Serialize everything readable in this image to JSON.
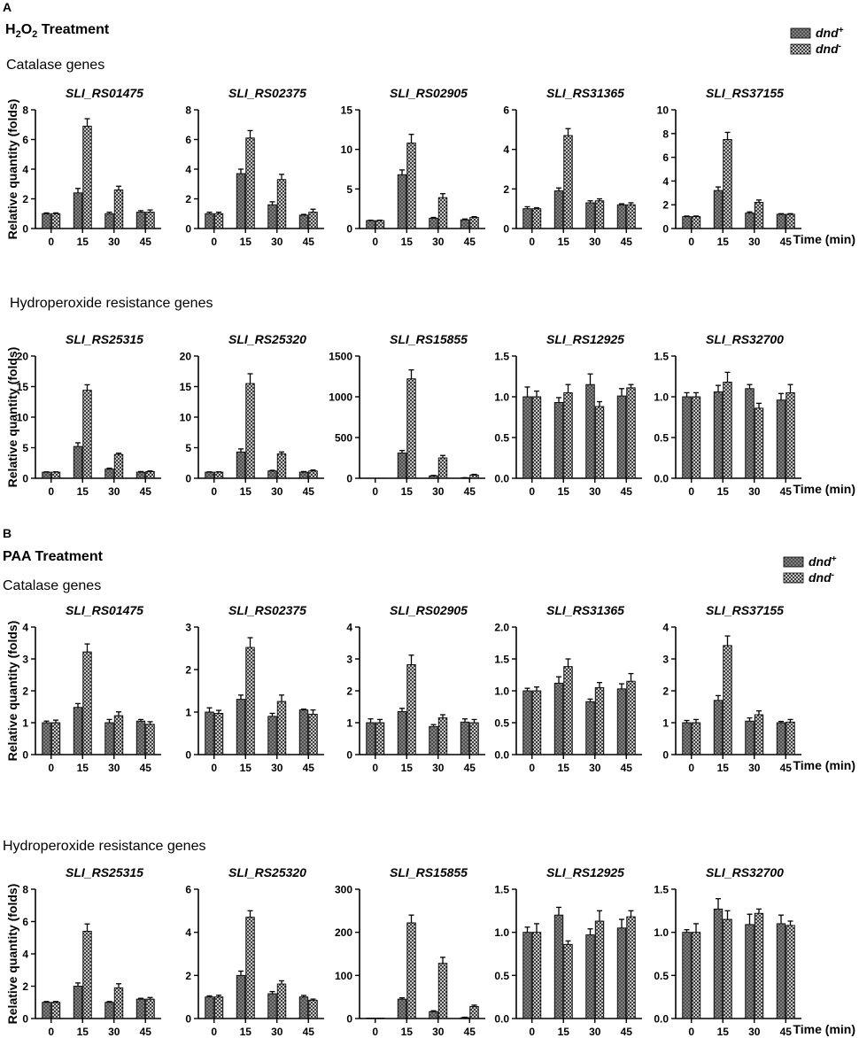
{
  "colors": {
    "ink": "#000000",
    "dnd_plus_fill": "#8a8a8a",
    "dnd_minus_fill": "#e6e6e6"
  },
  "time_label": "Time (min)",
  "ylabel": "Relative quantity (folds)",
  "panels": [
    {
      "letter": "A",
      "treatment": {
        "main": "H",
        "sub1": "2",
        "mid": "O",
        "sub2": "2",
        "rest": " Treatment"
      },
      "legend": [
        {
          "base": "dnd",
          "sup": "+",
          "pattern": "plus"
        },
        {
          "base": "dnd",
          "sup": "-",
          "pattern": "minus"
        }
      ],
      "sections": [
        {
          "title": "Catalase genes"
        },
        {
          "title": "Hydroperoxide resistance genes"
        }
      ]
    },
    {
      "letter": "B",
      "treatment": {
        "main": "PAA Treatment",
        "sub1": "",
        "mid": "",
        "sub2": "",
        "rest": ""
      },
      "legend": [
        {
          "base": "dnd",
          "sup": "+",
          "pattern": "plus"
        },
        {
          "base": "dnd",
          "sup": "-",
          "pattern": "minus"
        }
      ],
      "sections": [
        {
          "title": "Catalase genes"
        },
        {
          "title": "Hydroperoxide resistance genes"
        }
      ]
    }
  ],
  "chart_data": [
    {
      "type": "bar",
      "panel": "A",
      "group": "Catalase genes",
      "title": "SLI_RS01475",
      "categories": [
        "0",
        "15",
        "30",
        "45"
      ],
      "ylim": [
        0,
        8
      ],
      "yticks": [
        "0",
        "2",
        "4",
        "6",
        "8"
      ],
      "xlabel": "",
      "ylabel": "Relative quantity (folds)",
      "series": [
        {
          "name": "dnd+",
          "values": [
            1.0,
            2.4,
            1.0,
            1.1
          ],
          "errors": [
            0.05,
            0.3,
            0.1,
            0.1
          ]
        },
        {
          "name": "dnd-",
          "values": [
            1.0,
            6.9,
            2.6,
            1.1
          ],
          "errors": [
            0.05,
            0.5,
            0.25,
            0.15
          ]
        }
      ]
    },
    {
      "type": "bar",
      "panel": "A",
      "group": "Catalase genes",
      "title": "SLI_RS02375",
      "categories": [
        "0",
        "15",
        "30",
        "45"
      ],
      "ylim": [
        0,
        8
      ],
      "yticks": [
        "0",
        "2",
        "4",
        "6",
        "8"
      ],
      "xlabel": "",
      "ylabel": "",
      "series": [
        {
          "name": "dnd+",
          "values": [
            1.0,
            3.7,
            1.6,
            0.9
          ],
          "errors": [
            0.1,
            0.3,
            0.2,
            0.05
          ]
        },
        {
          "name": "dnd-",
          "values": [
            1.0,
            6.1,
            3.3,
            1.1
          ],
          "errors": [
            0.1,
            0.5,
            0.35,
            0.2
          ]
        }
      ]
    },
    {
      "type": "bar",
      "panel": "A",
      "group": "Catalase genes",
      "title": "SLI_RS02905",
      "categories": [
        "0",
        "15",
        "30",
        "45"
      ],
      "ylim": [
        0,
        15
      ],
      "yticks": [
        "0",
        "5",
        "10",
        "15"
      ],
      "xlabel": "",
      "ylabel": "",
      "series": [
        {
          "name": "dnd+",
          "values": [
            1.0,
            6.8,
            1.3,
            1.1
          ],
          "errors": [
            0.05,
            0.6,
            0.1,
            0.1
          ]
        },
        {
          "name": "dnd-",
          "values": [
            1.0,
            10.8,
            3.9,
            1.4
          ],
          "errors": [
            0.05,
            1.1,
            0.5,
            0.1
          ]
        }
      ]
    },
    {
      "type": "bar",
      "panel": "A",
      "group": "Catalase genes",
      "title": "SLI_RS31365",
      "categories": [
        "0",
        "15",
        "30",
        "45"
      ],
      "ylim": [
        0,
        6
      ],
      "yticks": [
        "0",
        "2",
        "4",
        "6"
      ],
      "xlabel": "",
      "ylabel": "",
      "series": [
        {
          "name": "dnd+",
          "values": [
            1.0,
            1.9,
            1.3,
            1.2
          ],
          "errors": [
            0.1,
            0.15,
            0.1,
            0.05
          ]
        },
        {
          "name": "dnd-",
          "values": [
            1.0,
            4.7,
            1.4,
            1.2
          ],
          "errors": [
            0.05,
            0.35,
            0.1,
            0.1
          ]
        }
      ]
    },
    {
      "type": "bar",
      "panel": "A",
      "group": "Catalase genes",
      "title": "SLI_RS37155",
      "categories": [
        "0",
        "15",
        "30",
        "45"
      ],
      "ylim": [
        0,
        10
      ],
      "yticks": [
        "0",
        "2",
        "4",
        "6",
        "8",
        "10"
      ],
      "xlabel": "Time (min)",
      "ylabel": "",
      "series": [
        {
          "name": "dnd+",
          "values": [
            1.0,
            3.2,
            1.3,
            1.2
          ],
          "errors": [
            0.05,
            0.3,
            0.1,
            0.05
          ]
        },
        {
          "name": "dnd-",
          "values": [
            1.0,
            7.5,
            2.2,
            1.2
          ],
          "errors": [
            0.05,
            0.6,
            0.2,
            0.05
          ]
        }
      ]
    },
    {
      "type": "bar",
      "panel": "A",
      "group": "Hydroperoxide resistance genes",
      "title": "SLI_RS25315",
      "categories": [
        "0",
        "15",
        "30",
        "45"
      ],
      "ylim": [
        0,
        20
      ],
      "yticks": [
        "0",
        "5",
        "10",
        "15",
        "20"
      ],
      "xlabel": "",
      "ylabel": "Relative quantity (folds)",
      "series": [
        {
          "name": "dnd+",
          "values": [
            1.0,
            5.2,
            1.5,
            1.0
          ],
          "errors": [
            0.05,
            0.6,
            0.15,
            0.1
          ]
        },
        {
          "name": "dnd-",
          "values": [
            1.0,
            14.4,
            3.9,
            1.1
          ],
          "errors": [
            0.05,
            0.9,
            0.2,
            0.1
          ]
        }
      ]
    },
    {
      "type": "bar",
      "panel": "A",
      "group": "Hydroperoxide resistance genes",
      "title": "SLI_RS25320",
      "categories": [
        "0",
        "15",
        "30",
        "45"
      ],
      "ylim": [
        0,
        20
      ],
      "yticks": [
        "0",
        "5",
        "10",
        "15",
        "20"
      ],
      "xlabel": "",
      "ylabel": "",
      "series": [
        {
          "name": "dnd+",
          "values": [
            1.0,
            4.3,
            1.2,
            1.0
          ],
          "errors": [
            0.05,
            0.5,
            0.1,
            0.1
          ]
        },
        {
          "name": "dnd-",
          "values": [
            1.0,
            15.5,
            4.0,
            1.2
          ],
          "errors": [
            0.05,
            1.6,
            0.3,
            0.15
          ]
        }
      ]
    },
    {
      "type": "bar",
      "panel": "A",
      "group": "Hydroperoxide resistance genes",
      "title": "SLI_RS15855",
      "categories": [
        "0",
        "15",
        "30",
        "45"
      ],
      "ylim": [
        0,
        1500
      ],
      "yticks": [
        "0",
        "500",
        "1000",
        "1500"
      ],
      "xlabel": "",
      "ylabel": "",
      "series": [
        {
          "name": "dnd+",
          "values": [
            1,
            310,
            30,
            5
          ],
          "errors": [
            0,
            30,
            5,
            2
          ]
        },
        {
          "name": "dnd-",
          "values": [
            1,
            1220,
            250,
            40
          ],
          "errors": [
            0,
            110,
            30,
            8
          ]
        }
      ]
    },
    {
      "type": "bar",
      "panel": "A",
      "group": "Hydroperoxide resistance genes",
      "title": "SLI_RS12925",
      "categories": [
        "0",
        "15",
        "30",
        "45"
      ],
      "ylim": [
        0,
        1.5
      ],
      "yticks": [
        "0.0",
        "0.5",
        "1.0",
        "1.5"
      ],
      "xlabel": "",
      "ylabel": "",
      "series": [
        {
          "name": "dnd+",
          "values": [
            1.0,
            0.93,
            1.15,
            1.01
          ],
          "errors": [
            0.12,
            0.06,
            0.13,
            0.09
          ]
        },
        {
          "name": "dnd-",
          "values": [
            1.0,
            1.05,
            0.88,
            1.11
          ],
          "errors": [
            0.07,
            0.1,
            0.06,
            0.04
          ]
        }
      ]
    },
    {
      "type": "bar",
      "panel": "A",
      "group": "Hydroperoxide resistance genes",
      "title": "SLI_RS32700",
      "categories": [
        "0",
        "15",
        "30",
        "45"
      ],
      "ylim": [
        0,
        1.5
      ],
      "yticks": [
        "0.0",
        "0.5",
        "1.0",
        "1.5"
      ],
      "xlabel": "Time (min)",
      "ylabel": "",
      "series": [
        {
          "name": "dnd+",
          "values": [
            1.0,
            1.06,
            1.1,
            0.96
          ],
          "errors": [
            0.05,
            0.08,
            0.05,
            0.08
          ]
        },
        {
          "name": "dnd-",
          "values": [
            1.0,
            1.18,
            0.86,
            1.05
          ],
          "errors": [
            0.05,
            0.12,
            0.06,
            0.1
          ]
        }
      ]
    },
    {
      "type": "bar",
      "panel": "B",
      "group": "Catalase genes",
      "title": "SLI_RS01475",
      "categories": [
        "0",
        "15",
        "30",
        "45"
      ],
      "ylim": [
        0,
        4
      ],
      "yticks": [
        "0",
        "1",
        "2",
        "3",
        "4"
      ],
      "xlabel": "",
      "ylabel": "Relative quantity (folds)",
      "series": [
        {
          "name": "dnd+",
          "values": [
            1.0,
            1.48,
            1.0,
            1.05
          ],
          "errors": [
            0.05,
            0.12,
            0.1,
            0.05
          ]
        },
        {
          "name": "dnd-",
          "values": [
            1.0,
            3.22,
            1.22,
            0.95
          ],
          "errors": [
            0.08,
            0.25,
            0.12,
            0.08
          ]
        }
      ]
    },
    {
      "type": "bar",
      "panel": "B",
      "group": "Catalase genes",
      "title": "SLI_RS02375",
      "categories": [
        "0",
        "15",
        "30",
        "45"
      ],
      "ylim": [
        0,
        3
      ],
      "yticks": [
        "0",
        "1",
        "2",
        "3"
      ],
      "xlabel": "",
      "ylabel": "",
      "series": [
        {
          "name": "dnd+",
          "values": [
            1.0,
            1.3,
            0.9,
            1.05
          ],
          "errors": [
            0.1,
            0.1,
            0.07,
            0.02
          ]
        },
        {
          "name": "dnd-",
          "values": [
            0.97,
            2.52,
            1.25,
            0.95
          ],
          "errors": [
            0.07,
            0.23,
            0.15,
            0.1
          ]
        }
      ]
    },
    {
      "type": "bar",
      "panel": "B",
      "group": "Catalase genes",
      "title": "SLI_RS02905",
      "categories": [
        "0",
        "15",
        "30",
        "45"
      ],
      "ylim": [
        0,
        4
      ],
      "yticks": [
        "0",
        "1",
        "2",
        "3",
        "4"
      ],
      "xlabel": "",
      "ylabel": "",
      "series": [
        {
          "name": "dnd+",
          "values": [
            1.0,
            1.35,
            0.88,
            1.02
          ],
          "errors": [
            0.12,
            0.1,
            0.06,
            0.1
          ]
        },
        {
          "name": "dnd-",
          "values": [
            1.0,
            2.82,
            1.15,
            1.0
          ],
          "errors": [
            0.1,
            0.3,
            0.1,
            0.1
          ]
        }
      ]
    },
    {
      "type": "bar",
      "panel": "B",
      "group": "Catalase genes",
      "title": "SLI_RS31365",
      "categories": [
        "0",
        "15",
        "30",
        "45"
      ],
      "ylim": [
        0,
        2
      ],
      "yticks": [
        "0.0",
        "0.5",
        "1.0",
        "1.5",
        "2.0"
      ],
      "xlabel": "",
      "ylabel": "",
      "series": [
        {
          "name": "dnd+",
          "values": [
            1.0,
            1.12,
            0.83,
            1.03
          ],
          "errors": [
            0.04,
            0.1,
            0.04,
            0.08
          ]
        },
        {
          "name": "dnd-",
          "values": [
            1.0,
            1.38,
            1.05,
            1.15
          ],
          "errors": [
            0.06,
            0.12,
            0.08,
            0.12
          ]
        }
      ]
    },
    {
      "type": "bar",
      "panel": "B",
      "group": "Catalase genes",
      "title": "SLI_RS37155",
      "categories": [
        "0",
        "15",
        "30",
        "45"
      ],
      "ylim": [
        0,
        4
      ],
      "yticks": [
        "0",
        "1",
        "2",
        "3",
        "4"
      ],
      "xlabel": "Time (min)",
      "ylabel": "",
      "series": [
        {
          "name": "dnd+",
          "values": [
            1.0,
            1.7,
            1.05,
            1.0
          ],
          "errors": [
            0.07,
            0.15,
            0.1,
            0.04
          ]
        },
        {
          "name": "dnd-",
          "values": [
            1.0,
            3.42,
            1.25,
            1.02
          ],
          "errors": [
            0.1,
            0.3,
            0.12,
            0.08
          ]
        }
      ]
    },
    {
      "type": "bar",
      "panel": "B",
      "group": "Hydroperoxide resistance genes",
      "title": "SLI_RS25315",
      "categories": [
        "0",
        "15",
        "30",
        "45"
      ],
      "ylim": [
        0,
        8
      ],
      "yticks": [
        "0",
        "2",
        "4",
        "6",
        "8"
      ],
      "xlabel": "",
      "ylabel": "Relative quantity (folds)",
      "series": [
        {
          "name": "dnd+",
          "values": [
            1.0,
            2.0,
            1.0,
            1.2
          ],
          "errors": [
            0.05,
            0.2,
            0.05,
            0.05
          ]
        },
        {
          "name": "dnd-",
          "values": [
            1.0,
            5.4,
            1.9,
            1.2
          ],
          "errors": [
            0.05,
            0.45,
            0.25,
            0.1
          ]
        }
      ]
    },
    {
      "type": "bar",
      "panel": "B",
      "group": "Hydroperoxide resistance genes",
      "title": "SLI_RS25320",
      "categories": [
        "0",
        "15",
        "30",
        "45"
      ],
      "ylim": [
        0,
        6
      ],
      "yticks": [
        "0",
        "2",
        "4",
        "6"
      ],
      "xlabel": "",
      "ylabel": "",
      "series": [
        {
          "name": "dnd+",
          "values": [
            1.0,
            2.0,
            1.15,
            1.0
          ],
          "errors": [
            0.05,
            0.2,
            0.1,
            0.07
          ]
        },
        {
          "name": "dnd-",
          "values": [
            1.0,
            4.7,
            1.6,
            0.85
          ],
          "errors": [
            0.08,
            0.3,
            0.15,
            0.05
          ]
        }
      ]
    },
    {
      "type": "bar",
      "panel": "B",
      "group": "Hydroperoxide resistance genes",
      "title": "SLI_RS15855",
      "categories": [
        "0",
        "15",
        "30",
        "45"
      ],
      "ylim": [
        0,
        300
      ],
      "yticks": [
        "0",
        "100",
        "200",
        "300"
      ],
      "xlabel": "",
      "ylabel": "",
      "series": [
        {
          "name": "dnd+",
          "values": [
            1,
            45,
            16,
            2
          ],
          "errors": [
            0,
            3,
            2,
            1
          ]
        },
        {
          "name": "dnd-",
          "values": [
            1,
            222,
            128,
            28
          ],
          "errors": [
            0,
            18,
            14,
            3
          ]
        }
      ]
    },
    {
      "type": "bar",
      "panel": "B",
      "group": "Hydroperoxide resistance genes",
      "title": "SLI_RS12925",
      "categories": [
        "0",
        "15",
        "30",
        "45"
      ],
      "ylim": [
        0,
        1.5
      ],
      "yticks": [
        "0.0",
        "0.5",
        "1.0",
        "1.5"
      ],
      "xlabel": "",
      "ylabel": "",
      "series": [
        {
          "name": "dnd+",
          "values": [
            1.0,
            1.2,
            0.97,
            1.05
          ],
          "errors": [
            0.06,
            0.09,
            0.07,
            0.1
          ]
        },
        {
          "name": "dnd-",
          "values": [
            1.0,
            0.86,
            1.13,
            1.18
          ],
          "errors": [
            0.1,
            0.04,
            0.12,
            0.07
          ]
        }
      ]
    },
    {
      "type": "bar",
      "panel": "B",
      "group": "Hydroperoxide resistance genes",
      "title": "SLI_RS32700",
      "categories": [
        "0",
        "15",
        "30",
        "45"
      ],
      "ylim": [
        0,
        1.5
      ],
      "yticks": [
        "0.0",
        "0.5",
        "1.0",
        "1.5"
      ],
      "xlabel": "Time (min)",
      "ylabel": "",
      "series": [
        {
          "name": "dnd+",
          "values": [
            1.0,
            1.27,
            1.09,
            1.1
          ],
          "errors": [
            0.03,
            0.12,
            0.12,
            0.1
          ]
        },
        {
          "name": "dnd-",
          "values": [
            1.0,
            1.15,
            1.22,
            1.08
          ],
          "errors": [
            0.1,
            0.1,
            0.05,
            0.05
          ]
        }
      ]
    }
  ]
}
